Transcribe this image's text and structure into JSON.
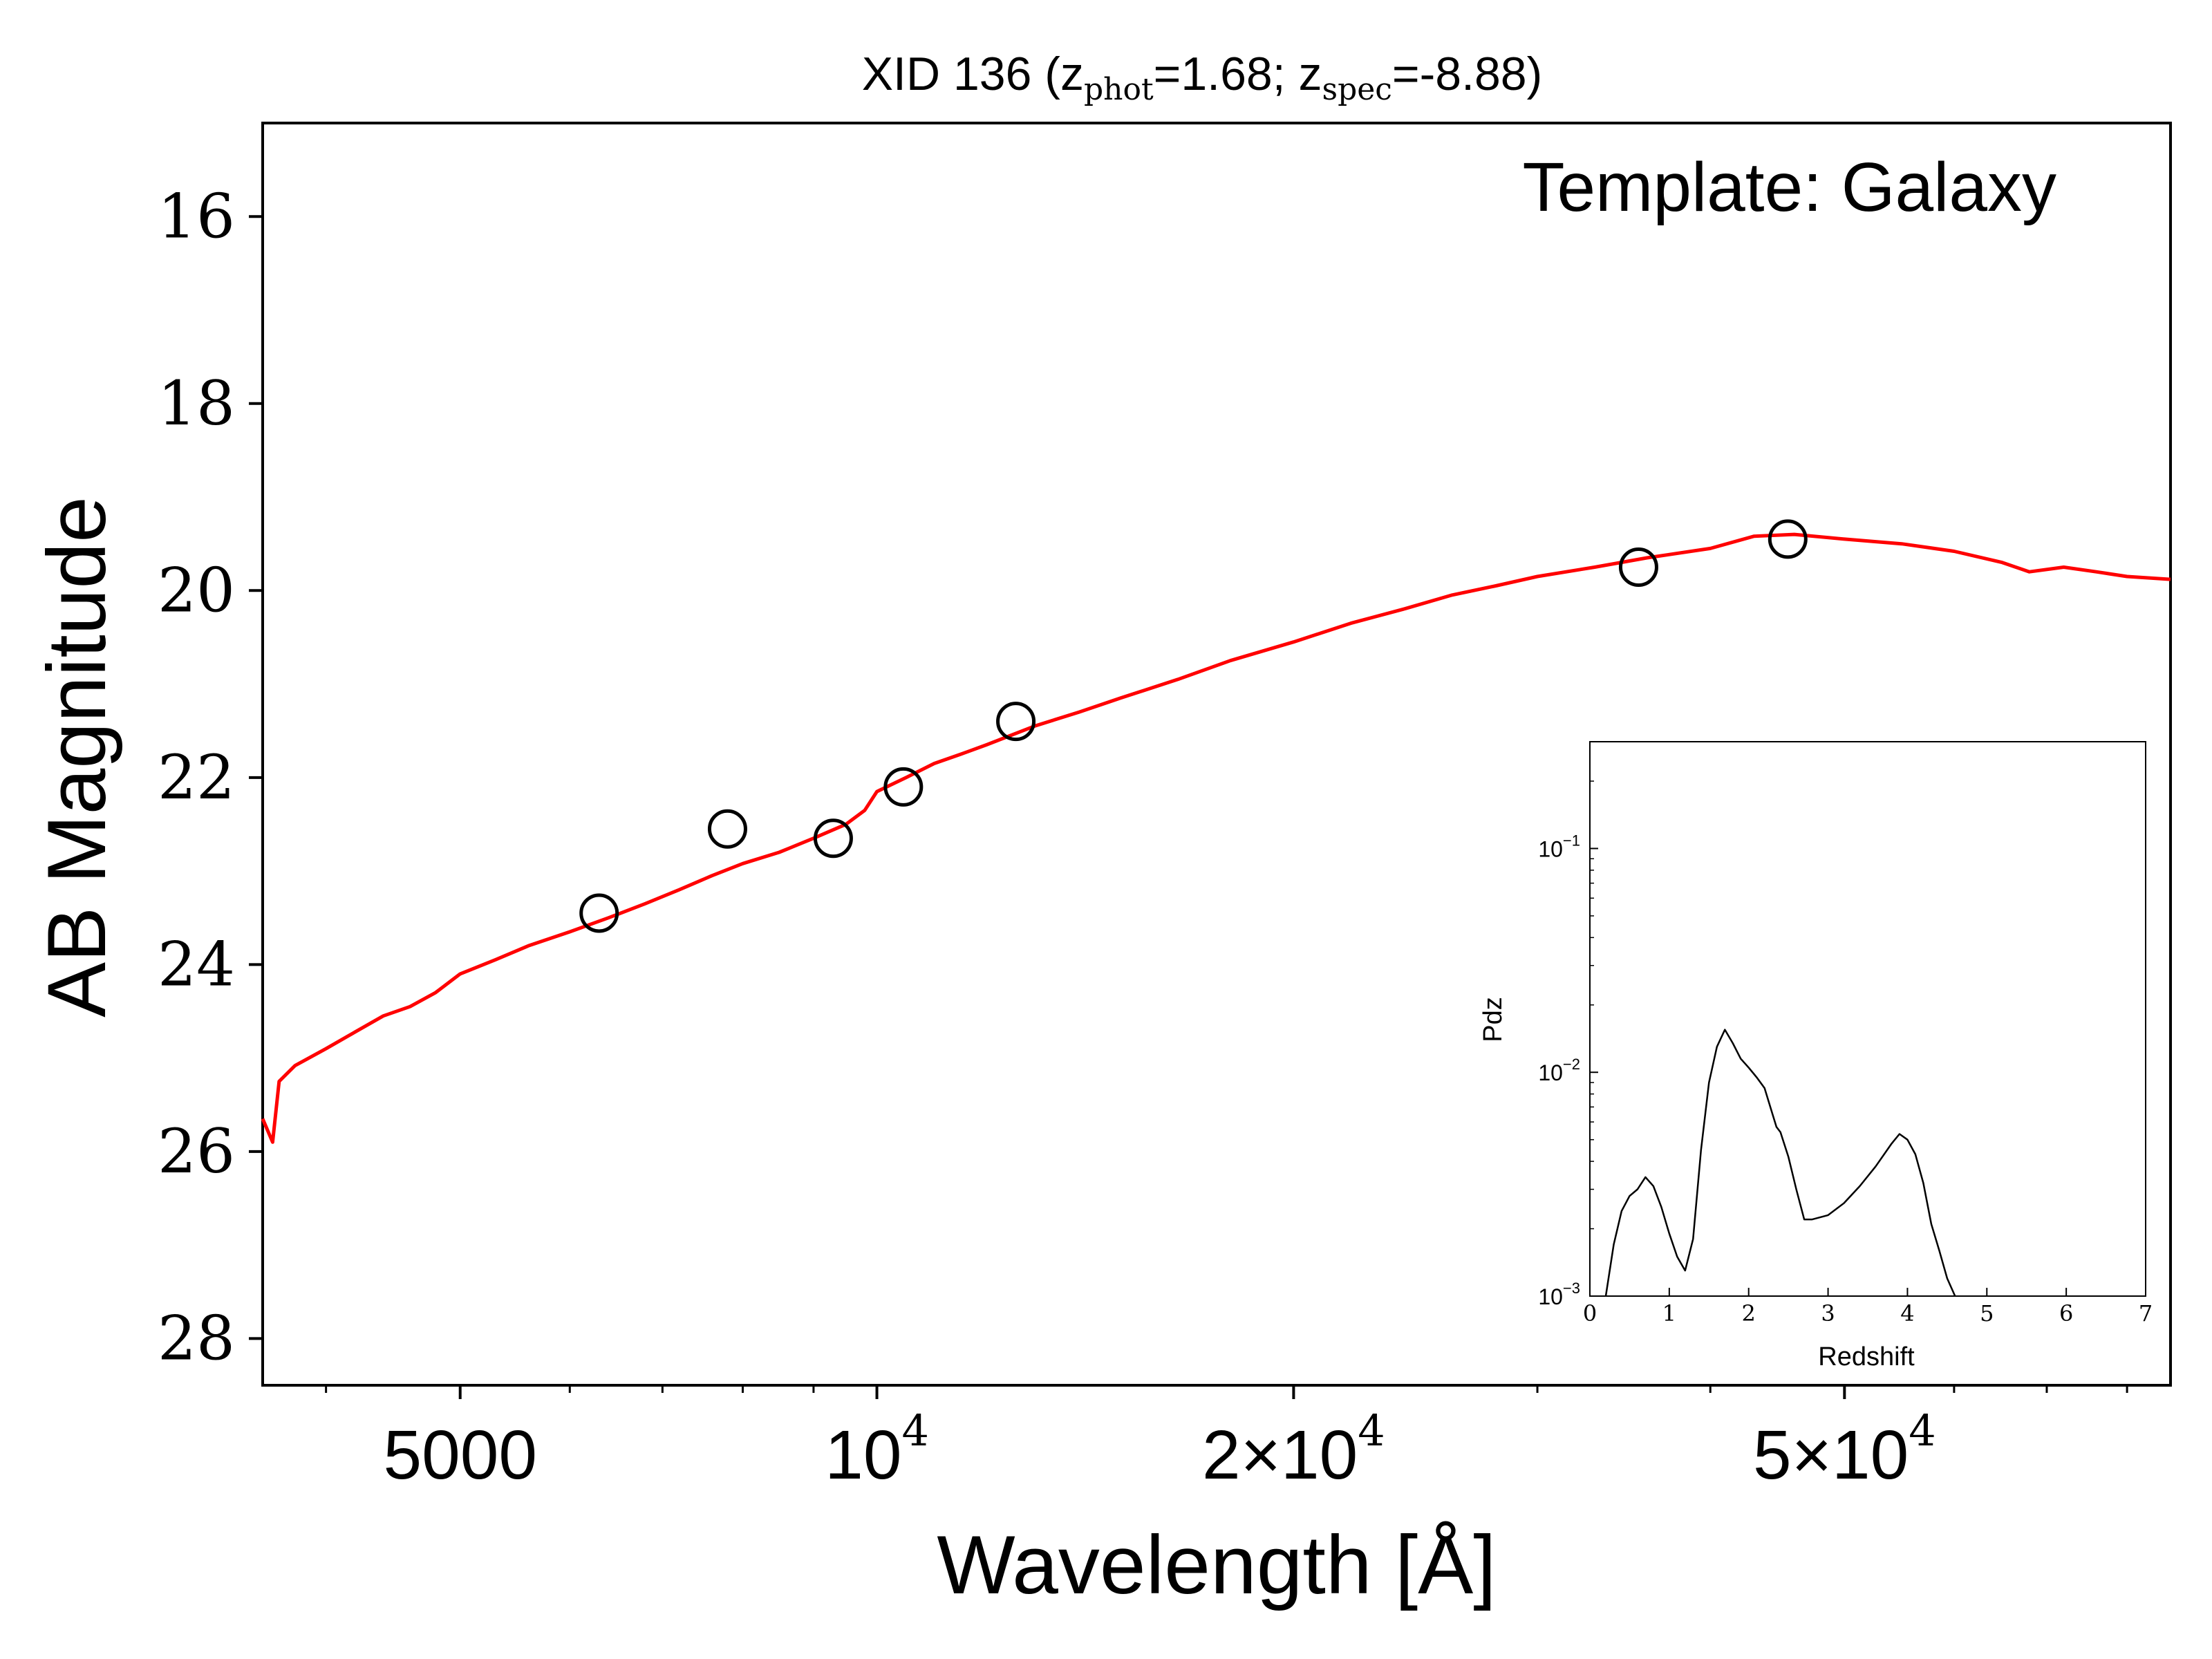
{
  "chart_data": [
    {
      "type": "line",
      "title_parts": {
        "prefix": "XID 136 (z",
        "sub1": "phot",
        "mid": "=1.68; z",
        "sub2": "spec",
        "suffix": "=-8.88)"
      },
      "annotation": "Template: Galaxy",
      "xlabel": "Wavelength [Å]",
      "ylabel": "AB Magnitude",
      "x_scale": "log",
      "xlim": [
        3600,
        86000
      ],
      "ylim": [
        28.5,
        15
      ],
      "y_inverted": true,
      "yticks": [
        16,
        18,
        20,
        22,
        24,
        26,
        28
      ],
      "xticks": [
        {
          "value": 5000,
          "label": "5000",
          "sup": ""
        },
        {
          "value": 10000,
          "label": "10",
          "sup": "4"
        },
        {
          "value": 20000,
          "label": "2×10",
          "sup": "4"
        },
        {
          "value": 50000,
          "label": "5×10",
          "sup": "4"
        }
      ],
      "grid": false,
      "series": [
        {
          "color": "#ff0000",
          "kind": "line",
          "points": [
            [
              3600,
              25.65
            ],
            [
              3660,
              25.9
            ],
            [
              3700,
              25.25
            ],
            [
              3800,
              25.08
            ],
            [
              4000,
              24.9
            ],
            [
              4200,
              24.72
            ],
            [
              4400,
              24.55
            ],
            [
              4600,
              24.45
            ],
            [
              4800,
              24.3
            ],
            [
              5000,
              24.1
            ],
            [
              5300,
              23.95
            ],
            [
              5600,
              23.8
            ],
            [
              6000,
              23.65
            ],
            [
              6400,
              23.5
            ],
            [
              6800,
              23.35
            ],
            [
              7200,
              23.2
            ],
            [
              7600,
              23.05
            ],
            [
              8000,
              22.92
            ],
            [
              8500,
              22.8
            ],
            [
              9000,
              22.65
            ],
            [
              9500,
              22.5
            ],
            [
              9800,
              22.35
            ],
            [
              10000,
              22.15
            ],
            [
              10500,
              22.0
            ],
            [
              11000,
              21.85
            ],
            [
              11500,
              21.75
            ],
            [
              12000,
              21.65
            ],
            [
              13000,
              21.45
            ],
            [
              14000,
              21.3
            ],
            [
              15000,
              21.15
            ],
            [
              16500,
              20.95
            ],
            [
              18000,
              20.75
            ],
            [
              20000,
              20.55
            ],
            [
              22000,
              20.35
            ],
            [
              24000,
              20.2
            ],
            [
              26000,
              20.05
            ],
            [
              28000,
              19.95
            ],
            [
              30000,
              19.85
            ],
            [
              33000,
              19.75
            ],
            [
              36000,
              19.65
            ],
            [
              40000,
              19.55
            ],
            [
              43000,
              19.42
            ],
            [
              46000,
              19.4
            ],
            [
              50000,
              19.45
            ],
            [
              55000,
              19.5
            ],
            [
              60000,
              19.58
            ],
            [
              65000,
              19.7
            ],
            [
              68000,
              19.8
            ],
            [
              72000,
              19.75
            ],
            [
              76000,
              19.8
            ],
            [
              80000,
              19.85
            ],
            [
              86000,
              19.88
            ]
          ]
        },
        {
          "kind": "markers",
          "color": "#000000",
          "marker": "open-circle",
          "points": [
            [
              6300,
              23.45
            ],
            [
              7800,
              22.55
            ],
            [
              9300,
              22.65
            ],
            [
              10450,
              22.1
            ],
            [
              12600,
              21.4
            ],
            [
              35500,
              19.75
            ],
            [
              45500,
              19.45
            ]
          ]
        }
      ]
    },
    {
      "type": "line",
      "inset": true,
      "xlabel": "Redshift",
      "ylabel": "Pdz",
      "xlim": [
        0,
        7
      ],
      "ylim": [
        0.001,
        0.3
      ],
      "y_scale": "log",
      "xticks": [
        "0",
        "1",
        "2",
        "3",
        "4",
        "5",
        "6",
        "7"
      ],
      "yticks": [
        {
          "value": 0.001,
          "base": "10",
          "sup": "−3"
        },
        {
          "value": 0.01,
          "base": "10",
          "sup": "−2"
        },
        {
          "value": 0.1,
          "base": "10",
          "sup": "−1"
        }
      ],
      "series": [
        {
          "color": "#000000",
          "points": [
            [
              0.2,
              0.001
            ],
            [
              0.3,
              0.0017
            ],
            [
              0.4,
              0.0024
            ],
            [
              0.5,
              0.0028
            ],
            [
              0.6,
              0.003
            ],
            [
              0.7,
              0.0034
            ],
            [
              0.8,
              0.0031
            ],
            [
              0.9,
              0.0025
            ],
            [
              1.0,
              0.0019
            ],
            [
              1.1,
              0.0015
            ],
            [
              1.2,
              0.0013
            ],
            [
              1.3,
              0.0018
            ],
            [
              1.4,
              0.0045
            ],
            [
              1.5,
              0.009
            ],
            [
              1.6,
              0.013
            ],
            [
              1.7,
              0.0155
            ],
            [
              1.8,
              0.0135
            ],
            [
              1.9,
              0.0115
            ],
            [
              2.0,
              0.0105
            ],
            [
              2.1,
              0.0095
            ],
            [
              2.2,
              0.0085
            ],
            [
              2.3,
              0.0065
            ],
            [
              2.35,
              0.0057
            ],
            [
              2.4,
              0.0054
            ],
            [
              2.5,
              0.0042
            ],
            [
              2.6,
              0.003
            ],
            [
              2.7,
              0.0022
            ],
            [
              2.8,
              0.0022
            ],
            [
              3.0,
              0.0023
            ],
            [
              3.2,
              0.0026
            ],
            [
              3.4,
              0.0031
            ],
            [
              3.6,
              0.0038
            ],
            [
              3.8,
              0.0048
            ],
            [
              3.9,
              0.0053
            ],
            [
              4.0,
              0.005
            ],
            [
              4.1,
              0.0043
            ],
            [
              4.2,
              0.0032
            ],
            [
              4.3,
              0.0021
            ],
            [
              4.4,
              0.0016
            ],
            [
              4.5,
              0.0012
            ],
            [
              4.6,
              0.001
            ]
          ]
        }
      ]
    }
  ]
}
